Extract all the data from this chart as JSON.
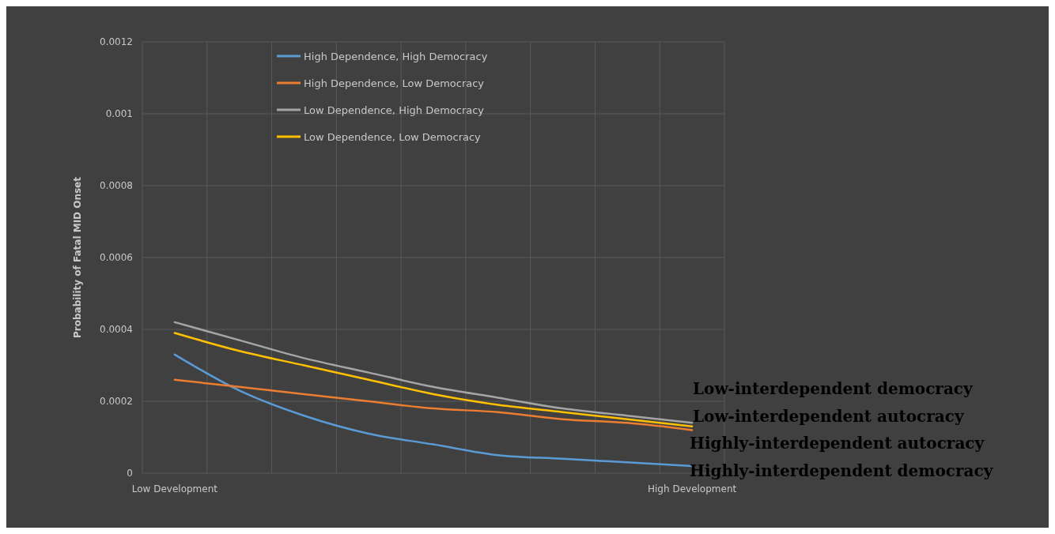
{
  "chart_data": {
    "type": "line",
    "ylabel": "Probability of Fatal MID Onset",
    "categories": [
      "Low Development",
      null,
      null,
      null,
      null,
      null,
      null,
      null,
      "High Development"
    ],
    "series": [
      {
        "name": "High Dependence, High Democracy",
        "color": "#5b9bd5",
        "values": [
          0.00033,
          0.00023,
          0.00016,
          0.00011,
          8e-05,
          5e-05,
          4e-05,
          3e-05,
          2e-05
        ]
      },
      {
        "name": "High Dependence, Low Democracy",
        "color": "#ed7d31",
        "values": [
          0.00026,
          0.00024,
          0.00022,
          0.0002,
          0.00018,
          0.00017,
          0.00015,
          0.00014,
          0.00012
        ]
      },
      {
        "name": "Low Dependence, High Democracy",
        "color": "#a5a5a5",
        "values": [
          0.00042,
          0.00037,
          0.00032,
          0.00028,
          0.00024,
          0.00021,
          0.00018,
          0.00016,
          0.00014
        ]
      },
      {
        "name": "Low Dependence, Low Democracy",
        "color": "#ffc000",
        "values": [
          0.00039,
          0.00034,
          0.0003,
          0.00026,
          0.00022,
          0.00019,
          0.00017,
          0.00015,
          0.00013
        ]
      }
    ],
    "ylim": [
      0,
      0.0012
    ],
    "yticks": [
      0,
      0.0002,
      0.0004,
      0.0006,
      0.0008,
      0.001,
      0.0012
    ],
    "grid": true,
    "legend": "top",
    "marker": "none",
    "line_style": "solid",
    "annotations": [
      "Low-interdependent democracy",
      "Low-interdependent autocracy",
      "Highly-interdependent autocracy",
      "Highly-interdependent democracy"
    ]
  }
}
